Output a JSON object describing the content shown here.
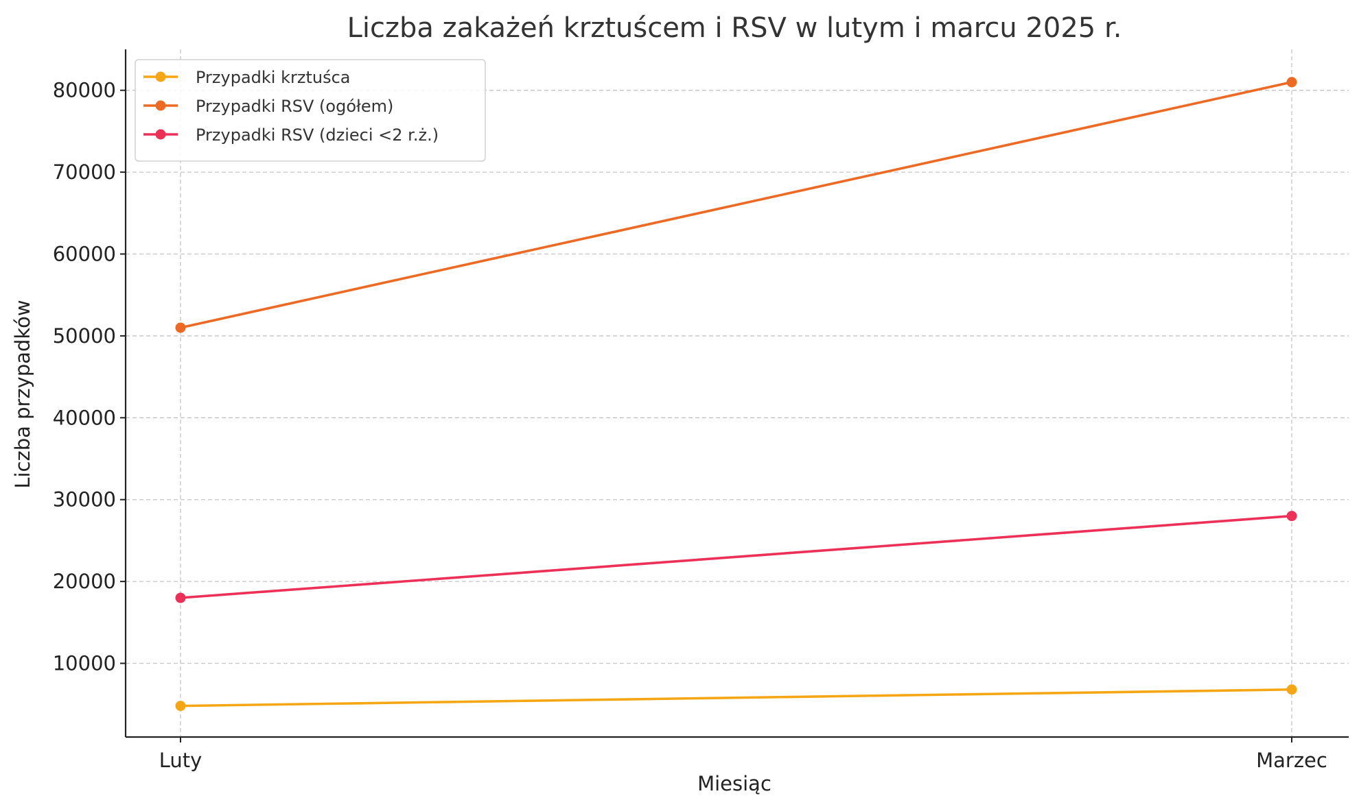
{
  "chart_data": {
    "type": "line",
    "title": "Liczba zakażeń krztuścem i RSV w lutym i marcu 2025 r.",
    "xlabel": "Miesiąc",
    "ylabel": "Liczba przypadków",
    "categories": [
      "Luty",
      "Marzec"
    ],
    "yticks": [
      10000,
      20000,
      30000,
      40000,
      50000,
      60000,
      70000,
      80000
    ],
    "ylim": [
      1000,
      85000
    ],
    "grid": true,
    "legend_position": "top-left",
    "series": [
      {
        "name": "Przypadki krztuśca",
        "color": "#f5a614",
        "values": [
          4800,
          6800
        ]
      },
      {
        "name": "Przypadki RSV (ogółem)",
        "color": "#ec6a24",
        "values": [
          51000,
          81000
        ]
      },
      {
        "name": "Przypadki RSV (dzieci <2 r.ż.)",
        "color": "#ec3057",
        "values": [
          18000,
          28000
        ]
      }
    ]
  }
}
